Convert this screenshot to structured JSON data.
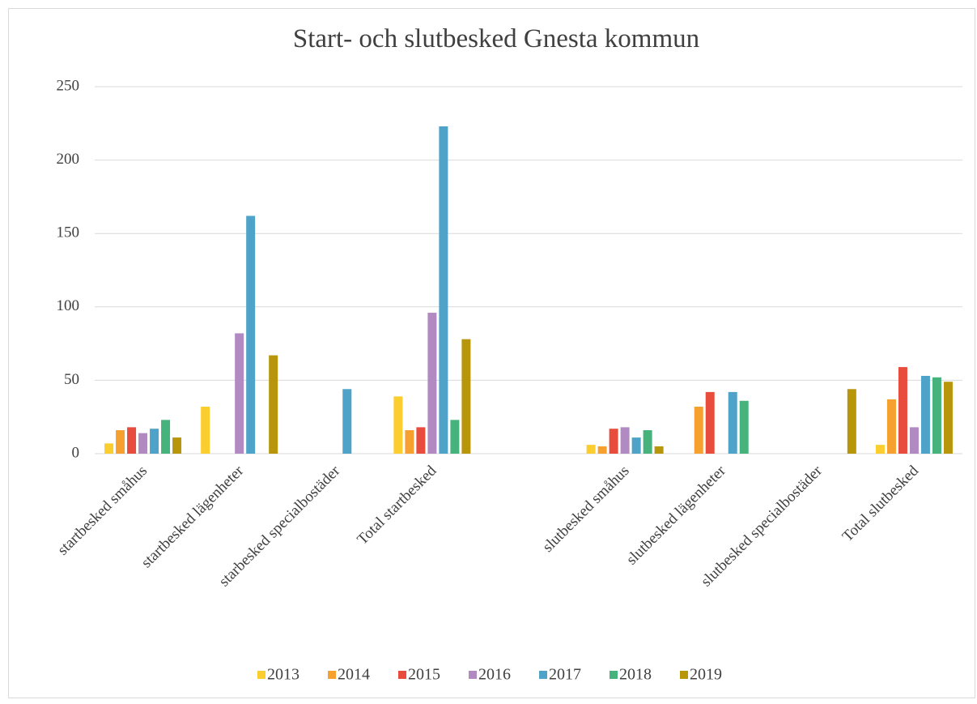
{
  "chart_data": {
    "type": "bar",
    "title": "Start- och slutbesked Gnesta kommun",
    "categories": [
      "startbesked småhus",
      "startbesked lägenheter",
      "starbesked specialbostäder",
      "Total startbesked",
      null,
      "slutbesked småhus",
      "slutbesked lägenheter",
      "slutbesked specialbostäder",
      "Total slutbesked"
    ],
    "series": [
      {
        "name": "2013",
        "color": "#fbcd2e",
        "values": [
          7,
          32,
          null,
          39,
          null,
          6,
          null,
          null,
          6
        ]
      },
      {
        "name": "2014",
        "color": "#f5a02f",
        "values": [
          16,
          null,
          null,
          16,
          null,
          5,
          32,
          null,
          37
        ]
      },
      {
        "name": "2015",
        "color": "#e84c3d",
        "values": [
          18,
          null,
          null,
          18,
          null,
          17,
          42,
          null,
          59
        ]
      },
      {
        "name": "2016",
        "color": "#b18ac2",
        "values": [
          14,
          82,
          null,
          96,
          null,
          18,
          null,
          null,
          18
        ]
      },
      {
        "name": "2017",
        "color": "#4fa3c8",
        "values": [
          17,
          162,
          44,
          223,
          null,
          11,
          42,
          null,
          53
        ]
      },
      {
        "name": "2018",
        "color": "#46b37c",
        "values": [
          23,
          null,
          null,
          23,
          null,
          16,
          36,
          null,
          52
        ]
      },
      {
        "name": "2019",
        "color": "#b8960c",
        "values": [
          11,
          67,
          null,
          78,
          null,
          5,
          null,
          44,
          49
        ]
      }
    ],
    "ylim": [
      0,
      250
    ],
    "yticks": [
      0,
      50,
      100,
      150,
      200,
      250
    ],
    "grid": true,
    "legend": "bottom"
  }
}
